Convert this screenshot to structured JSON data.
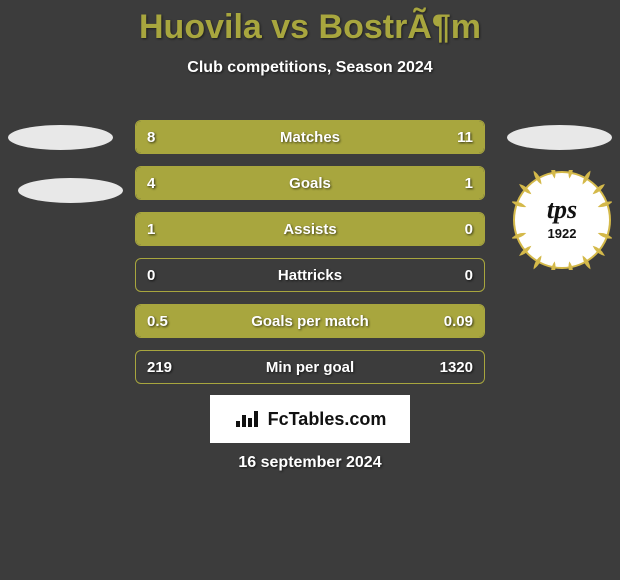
{
  "header": {
    "title": "Huovila vs BostrÃ¶m",
    "subtitle": "Club competitions, Season 2024"
  },
  "colors": {
    "background": "#3c3c3c",
    "accent": "#a8a63e",
    "text_light": "#ffffff",
    "avatar_placeholder": "#e8e8e8"
  },
  "stats": [
    {
      "label": "Matches",
      "left_val": "8",
      "right_val": "11",
      "left_pct": 40,
      "right_pct": 60
    },
    {
      "label": "Goals",
      "left_val": "4",
      "right_val": "1",
      "left_pct": 77,
      "right_pct": 23
    },
    {
      "label": "Assists",
      "left_val": "1",
      "right_val": "0",
      "left_pct": 100,
      "right_pct": 0
    },
    {
      "label": "Hattricks",
      "left_val": "0",
      "right_val": "0",
      "left_pct": 0,
      "right_pct": 0
    },
    {
      "label": "Goals per match",
      "left_val": "0.5",
      "right_val": "0.09",
      "left_pct": 100,
      "right_pct": 0
    },
    {
      "label": "Min per goal",
      "left_val": "219",
      "right_val": "1320",
      "left_pct": 0,
      "right_pct": 0
    }
  ],
  "brand": {
    "text": "FcTables.com"
  },
  "date_text": "16 september 2024",
  "badge": {
    "outer_color": "#d4b94a",
    "inner_bg": "#ffffff",
    "text_color": "#111111",
    "top_text": "tps",
    "founded": "1922"
  }
}
